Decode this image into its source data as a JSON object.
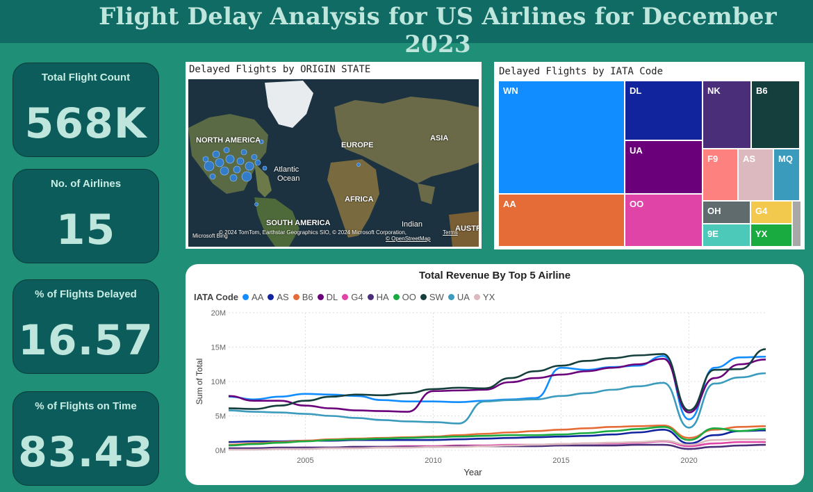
{
  "title": "Flight Delay Analysis for US Airlines for December 2023",
  "kpis": [
    {
      "label": "Total Flight Count",
      "value": "568K"
    },
    {
      "label": "No. of Airlines",
      "value": "15"
    },
    {
      "label": "% of Flights Delayed",
      "value": "16.57"
    },
    {
      "label": "% of Flights on Time",
      "value": "83.43"
    }
  ],
  "map": {
    "title": "Delayed Flights by ORIGIN STATE",
    "labels": {
      "north_america": "NORTH AMERICA",
      "europe": "EUROPE",
      "asia": "ASIA",
      "atlantic": "Atlantic",
      "ocean": "Ocean",
      "africa": "AFRICA",
      "south_america": "SOUTH AMERICA",
      "indian": "Indian",
      "austr": "AUSTR"
    },
    "attribution": "© 2024 TomTom, Earthstar Geographics SIO, © 2024 Microsoft Corporation,",
    "terms": "Terms",
    "osm": "© OpenStreetMap",
    "brand": "Microsoft Bing"
  },
  "treemap": {
    "title": "Delayed Flights by IATA Code",
    "tiles": [
      {
        "code": "WN",
        "color": "#118dff"
      },
      {
        "code": "AA",
        "color": "#e66c37"
      },
      {
        "code": "DL",
        "color": "#12239e"
      },
      {
        "code": "UA",
        "color": "#6b007b"
      },
      {
        "code": "OO",
        "color": "#e044a7"
      },
      {
        "code": "NK",
        "color": "#4a2e7a"
      },
      {
        "code": "B6",
        "color": "#143f3c"
      },
      {
        "code": "F9",
        "color": "#fd817e"
      },
      {
        "code": "AS",
        "color": "#dbb9be"
      },
      {
        "code": "MQ",
        "color": "#3a9bbd"
      },
      {
        "code": "OH",
        "color": "#5f6b6d"
      },
      {
        "code": "G4",
        "color": "#f2c94c"
      },
      {
        "code": "9E",
        "color": "#4cc9b9"
      },
      {
        "code": "YX",
        "color": "#1aab40"
      },
      {
        "code": "",
        "color": "#a8a8a8"
      }
    ]
  },
  "chart_data": {
    "type": "line",
    "title": "Total Revenue By Top 5 Airline",
    "legend_title": "IATA Code",
    "xlabel": "Year",
    "ylabel": "Sum of Total",
    "xlim": [
      2002,
      2023
    ],
    "ylim": [
      0,
      20000000
    ],
    "xticks": [
      2005,
      2010,
      2015,
      2020
    ],
    "yticks": [
      0,
      5000000,
      10000000,
      15000000,
      20000000
    ],
    "ytick_labels": [
      "0M",
      "5M",
      "10M",
      "15M",
      "20M"
    ],
    "x": [
      2002,
      2003,
      2004,
      2005,
      2006,
      2007,
      2008,
      2009,
      2010,
      2011,
      2012,
      2013,
      2014,
      2015,
      2016,
      2017,
      2018,
      2019,
      2020,
      2021,
      2022,
      2023
    ],
    "series": [
      {
        "name": "AA",
        "color": "#118dff",
        "values": [
          7.8,
          7.4,
          7.8,
          8.2,
          8.1,
          7.9,
          7.3,
          7.1,
          7.1,
          7.0,
          7.2,
          7.4,
          7.6,
          12.0,
          11.7,
          12.1,
          12.3,
          13.7,
          4.5,
          12.0,
          13.5,
          13.6
        ]
      },
      {
        "name": "AS",
        "color": "#12239e",
        "values": [
          1.2,
          1.3,
          1.3,
          1.4,
          1.4,
          1.5,
          1.5,
          1.5,
          1.5,
          1.6,
          1.7,
          1.8,
          1.9,
          2.0,
          2.1,
          2.3,
          2.6,
          3.0,
          1.0,
          2.2,
          2.8,
          2.9
        ]
      },
      {
        "name": "B6",
        "color": "#e66c37",
        "values": [
          0.8,
          1.0,
          1.2,
          1.4,
          1.6,
          1.7,
          1.8,
          1.9,
          2.0,
          2.2,
          2.4,
          2.6,
          2.8,
          3.0,
          3.2,
          3.4,
          3.5,
          3.6,
          1.8,
          3.0,
          3.4,
          3.5
        ]
      },
      {
        "name": "DL",
        "color": "#6b007b",
        "values": [
          7.9,
          7.2,
          7.2,
          6.5,
          6.1,
          5.8,
          5.7,
          5.6,
          8.6,
          8.7,
          8.8,
          9.9,
          10.5,
          11.0,
          11.5,
          12.0,
          12.5,
          13.3,
          5.5,
          10.5,
          12.5,
          13.2
        ]
      },
      {
        "name": "G4",
        "color": "#e044a7",
        "values": [
          0.2,
          0.3,
          0.3,
          0.4,
          0.4,
          0.5,
          0.5,
          0.6,
          0.6,
          0.7,
          0.7,
          0.8,
          0.8,
          0.9,
          1.0,
          1.0,
          1.1,
          1.3,
          0.6,
          1.0,
          1.2,
          1.2
        ]
      },
      {
        "name": "HA",
        "color": "#4a2e7a",
        "values": [
          0.3,
          0.3,
          0.4,
          0.4,
          0.4,
          0.5,
          0.5,
          0.5,
          0.5,
          0.6,
          0.6,
          0.6,
          0.6,
          0.7,
          0.7,
          0.7,
          0.8,
          0.8,
          0.2,
          0.5,
          0.7,
          0.8
        ]
      },
      {
        "name": "OO",
        "color": "#1aab40",
        "values": [
          0.7,
          0.9,
          1.1,
          1.3,
          1.5,
          1.6,
          1.7,
          1.8,
          1.9,
          2.0,
          2.1,
          2.2,
          2.2,
          2.3,
          2.5,
          2.8,
          3.1,
          3.4,
          1.5,
          3.2,
          2.8,
          3.1
        ]
      },
      {
        "name": "SW",
        "color": "#143f3c",
        "values": [
          6.1,
          6.0,
          6.5,
          7.2,
          7.8,
          8.1,
          8.0,
          8.3,
          8.9,
          9.1,
          9.0,
          10.5,
          11.5,
          12.3,
          13.0,
          13.4,
          13.8,
          14.0,
          5.8,
          11.7,
          11.8,
          14.7
        ]
      },
      {
        "name": "UA",
        "color": "#3a9bbd",
        "values": [
          5.8,
          5.6,
          5.5,
          5.3,
          5.0,
          4.7,
          4.4,
          4.2,
          4.1,
          3.9,
          7.1,
          7.3,
          7.4,
          7.9,
          8.3,
          8.8,
          9.3,
          9.8,
          3.3,
          9.7,
          10.6,
          11.2
        ]
      },
      {
        "name": "YX",
        "color": "#dbb9be",
        "values": [
          0.1,
          0.1,
          0.2,
          0.2,
          0.3,
          0.3,
          0.4,
          0.4,
          0.5,
          0.5,
          0.6,
          0.7,
          0.8,
          0.9,
          1.0,
          1.1,
          1.2,
          1.4,
          0.8,
          1.5,
          1.6,
          1.6
        ]
      }
    ],
    "value_unit": "millions"
  }
}
